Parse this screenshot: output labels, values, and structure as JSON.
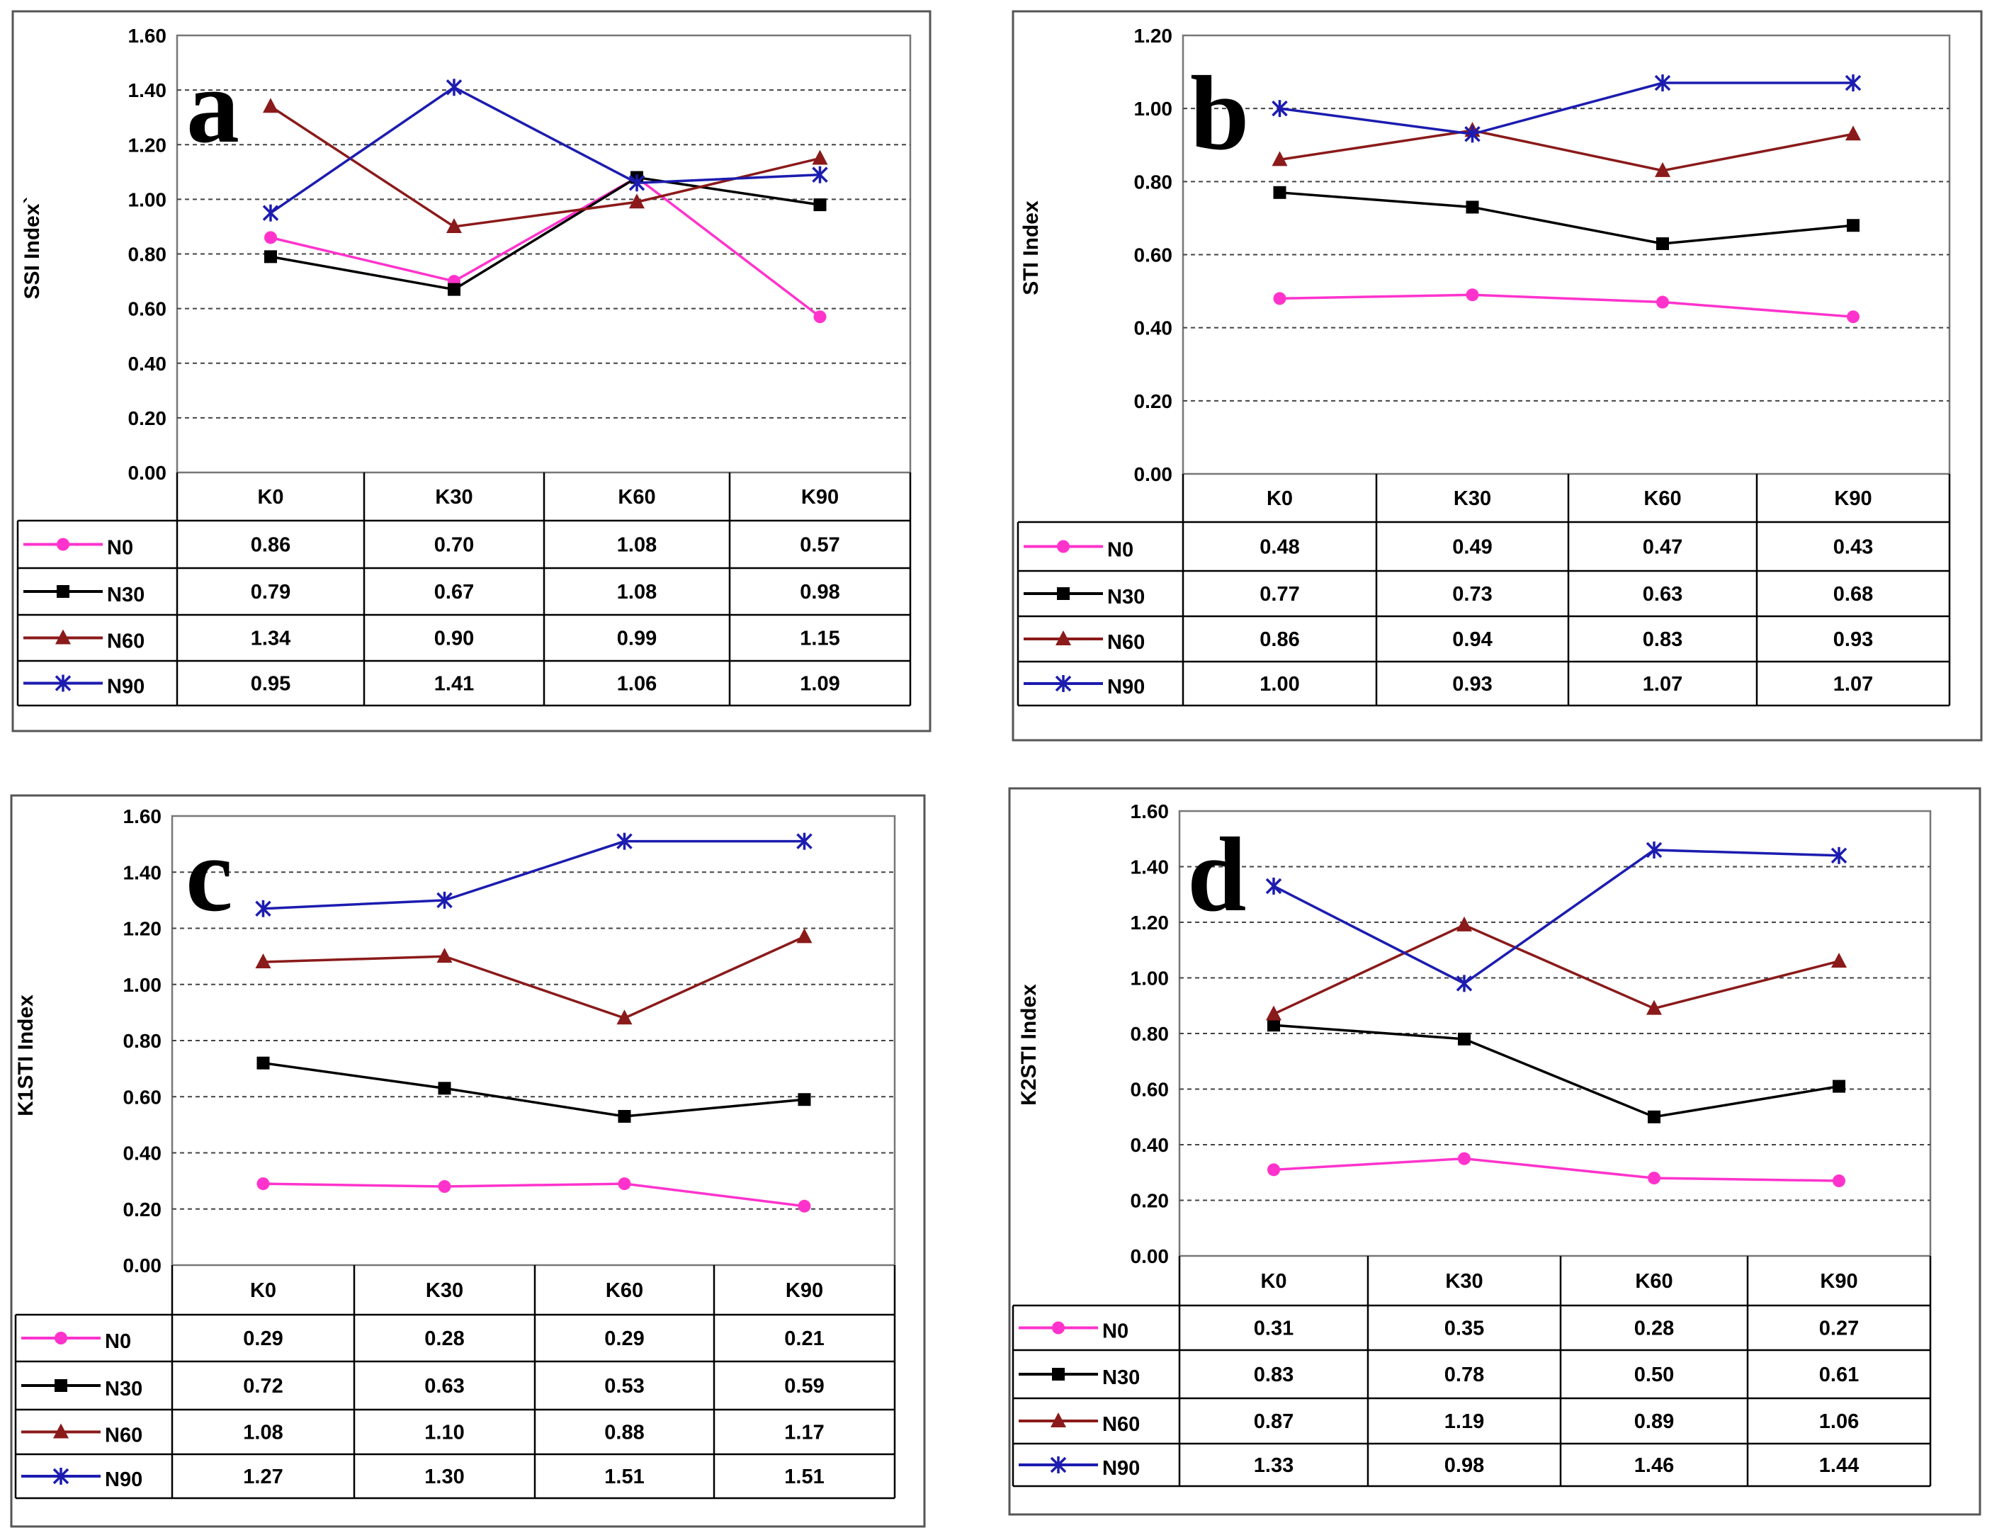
{
  "categories": [
    "K0",
    "K30",
    "K60",
    "K90"
  ],
  "series_colors": {
    "N0": "#ff33cc",
    "N30": "#000000",
    "N60": "#8b1a1a",
    "N90": "#1c1cb0"
  },
  "chart_data": [
    {
      "type": "line",
      "panel": "a",
      "ylabel": "SSI Index`",
      "ylim": [
        0,
        1.6
      ],
      "yticks": [
        "0.00",
        "0.20",
        "0.40",
        "0.60",
        "0.80",
        "1.00",
        "1.20",
        "1.40",
        "1.60"
      ],
      "categories": [
        "K0",
        "K30",
        "K60",
        "K90"
      ],
      "series": [
        {
          "name": "N0",
          "marker": "circle",
          "values": [
            0.86,
            0.7,
            1.08,
            0.57
          ],
          "labels": [
            "0.86",
            "0.70",
            "1.08",
            "0.57"
          ]
        },
        {
          "name": "N30",
          "marker": "square",
          "values": [
            0.79,
            0.67,
            1.08,
            0.98
          ],
          "labels": [
            "0.79",
            "0.67",
            "1.08",
            "0.98"
          ]
        },
        {
          "name": "N60",
          "marker": "triangle",
          "values": [
            1.34,
            0.9,
            0.99,
            1.15
          ],
          "labels": [
            "1.34",
            "0.90",
            "0.99",
            "1.15"
          ]
        },
        {
          "name": "N90",
          "marker": "star",
          "values": [
            0.95,
            1.41,
            1.06,
            1.09
          ],
          "labels": [
            "0.95",
            "1.41",
            "1.06",
            "1.09"
          ]
        }
      ]
    },
    {
      "type": "line",
      "panel": "b",
      "ylabel": "STI Index",
      "ylim": [
        0,
        1.2
      ],
      "yticks": [
        "0.00",
        "0.20",
        "0.40",
        "0.60",
        "0.80",
        "1.00",
        "1.20"
      ],
      "categories": [
        "K0",
        "K30",
        "K60",
        "K90"
      ],
      "series": [
        {
          "name": "N0",
          "marker": "circle",
          "values": [
            0.48,
            0.49,
            0.47,
            0.43
          ],
          "labels": [
            "0.48",
            "0.49",
            "0.47",
            "0.43"
          ]
        },
        {
          "name": "N30",
          "marker": "square",
          "values": [
            0.77,
            0.73,
            0.63,
            0.68
          ],
          "labels": [
            "0.77",
            "0.73",
            "0.63",
            "0.68"
          ]
        },
        {
          "name": "N60",
          "marker": "triangle",
          "values": [
            0.86,
            0.94,
            0.83,
            0.93
          ],
          "labels": [
            "0.86",
            "0.94",
            "0.83",
            "0.93"
          ]
        },
        {
          "name": "N90",
          "marker": "star",
          "values": [
            1.0,
            0.93,
            1.07,
            1.07
          ],
          "labels": [
            "1.00",
            "0.93",
            "1.07",
            "1.07"
          ]
        }
      ]
    },
    {
      "type": "line",
      "panel": "c",
      "ylabel": "K1STI Index",
      "ylim": [
        0,
        1.6
      ],
      "yticks": [
        "0.00",
        "0.20",
        "0.40",
        "0.60",
        "0.80",
        "1.00",
        "1.20",
        "1.40",
        "1.60"
      ],
      "categories": [
        "K0",
        "K30",
        "K60",
        "K90"
      ],
      "series": [
        {
          "name": "N0",
          "marker": "circle",
          "values": [
            0.29,
            0.28,
            0.29,
            0.21
          ],
          "labels": [
            "0.29",
            "0.28",
            "0.29",
            "0.21"
          ]
        },
        {
          "name": "N30",
          "marker": "square",
          "values": [
            0.72,
            0.63,
            0.53,
            0.59
          ],
          "labels": [
            "0.72",
            "0.63",
            "0.53",
            "0.59"
          ]
        },
        {
          "name": "N60",
          "marker": "triangle",
          "values": [
            1.08,
            1.1,
            0.88,
            1.17
          ],
          "labels": [
            "1.08",
            "1.10",
            "0.88",
            "1.17"
          ]
        },
        {
          "name": "N90",
          "marker": "star",
          "values": [
            1.27,
            1.3,
            1.51,
            1.51
          ],
          "labels": [
            "1.27",
            "1.30",
            "1.51",
            "1.51"
          ]
        }
      ]
    },
    {
      "type": "line",
      "panel": "d",
      "ylabel": "K2STI Index",
      "ylim": [
        0,
        1.6
      ],
      "yticks": [
        "0.00",
        "0.20",
        "0.40",
        "0.60",
        "0.80",
        "1.00",
        "1.20",
        "1.40",
        "1.60"
      ],
      "categories": [
        "K0",
        "K30",
        "K60",
        "K90"
      ],
      "series": [
        {
          "name": "N0",
          "marker": "circle",
          "values": [
            0.31,
            0.35,
            0.28,
            0.27
          ],
          "labels": [
            "0.31",
            "0.35",
            "0.28",
            "0.27"
          ]
        },
        {
          "name": "N30",
          "marker": "square",
          "values": [
            0.83,
            0.78,
            0.5,
            0.61
          ],
          "labels": [
            "0.83",
            "0.78",
            "0.50",
            "0.61"
          ]
        },
        {
          "name": "N60",
          "marker": "triangle",
          "values": [
            0.87,
            1.19,
            0.89,
            1.06
          ],
          "labels": [
            "0.87",
            "1.19",
            "0.89",
            "1.06"
          ]
        },
        {
          "name": "N90",
          "marker": "star",
          "values": [
            1.33,
            0.98,
            1.46,
            1.44
          ],
          "labels": [
            "1.33",
            "0.98",
            "1.46",
            "1.44"
          ]
        }
      ]
    }
  ]
}
